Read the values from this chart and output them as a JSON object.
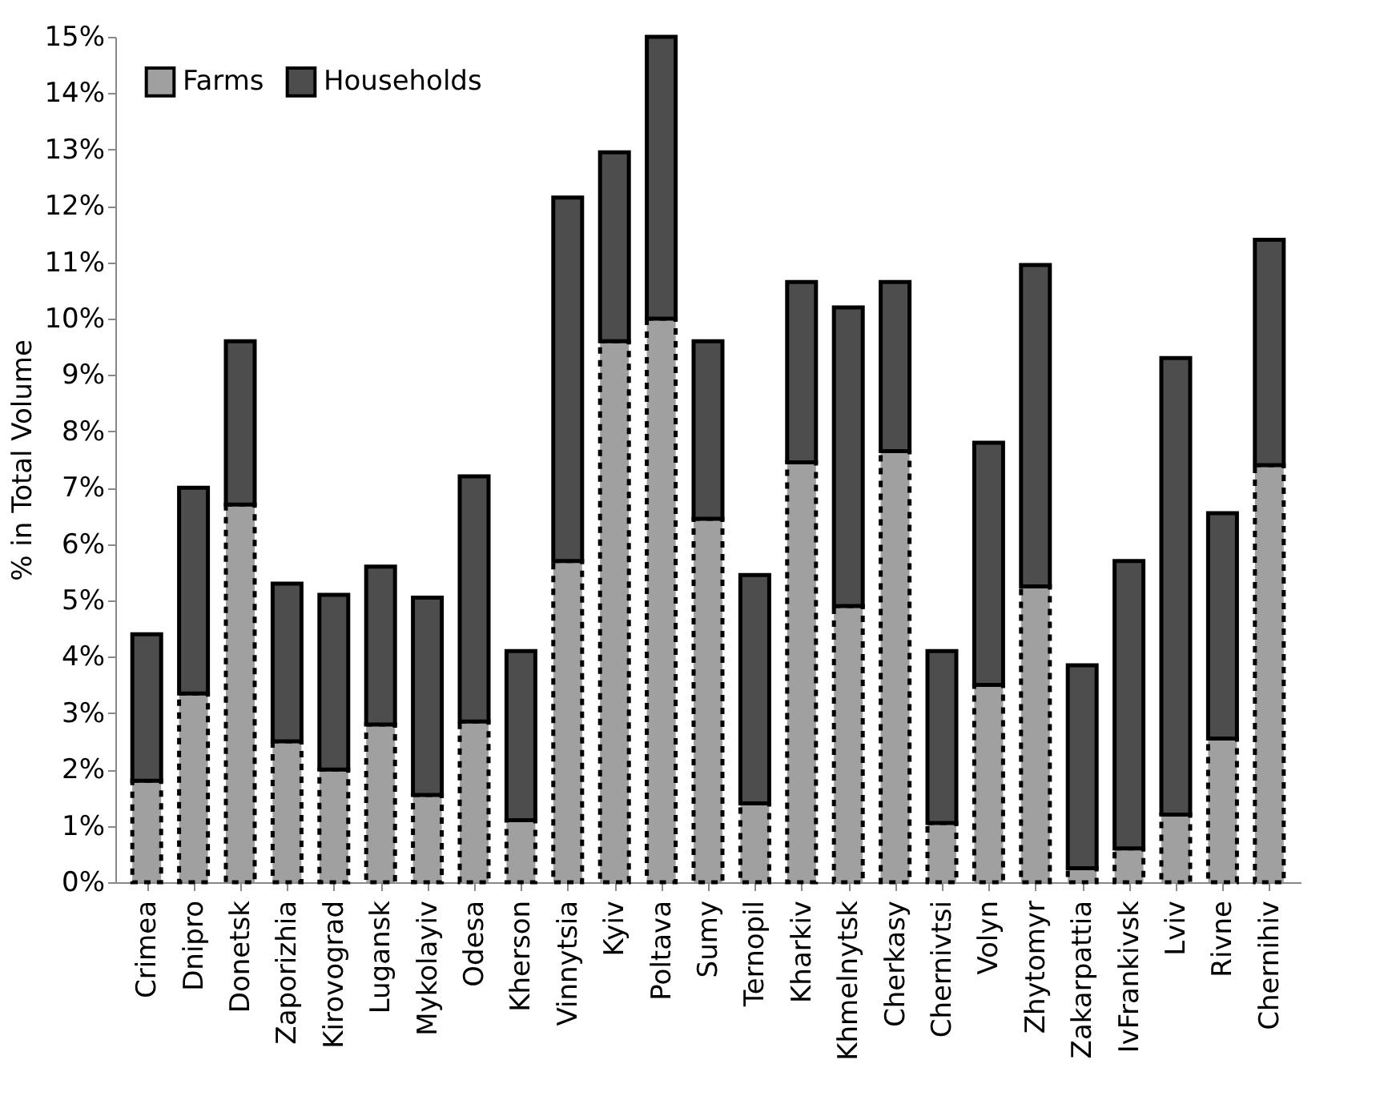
{
  "chart_data": {
    "type": "bar",
    "stacked": true,
    "ylabel": "% in Total Volume",
    "categories": [
      "Crimea",
      "Dnipro",
      "Donetsk",
      "Zaporizhia",
      "Kirovograd",
      "Lugansk",
      "Mykolayiv",
      "Odesa",
      "Kherson",
      "Vinnytsia",
      "Kyiv",
      "Poltava",
      "Sumy",
      "Ternopil",
      "Kharkiv",
      "Khmelnytsk",
      "Cherkasy",
      "Chernivtsi",
      "Volyn",
      "Zhytomyr",
      "Zakarpattia",
      "IvFrankivsk",
      "Lviv",
      "Rivne",
      "Chernihiv"
    ],
    "series": [
      {
        "name": "Farms",
        "color": "#a0a0a0",
        "line_style": "dotted",
        "values": [
          1.8,
          3.35,
          6.7,
          2.5,
          2.0,
          2.8,
          1.55,
          2.85,
          1.1,
          5.7,
          9.6,
          10.0,
          6.45,
          1.4,
          7.45,
          4.9,
          7.65,
          1.05,
          3.5,
          5.25,
          0.25,
          0.6,
          1.2,
          2.55,
          7.4
        ]
      },
      {
        "name": "Households",
        "color": "#4d4d4d",
        "line_style": "solid",
        "values": [
          2.6,
          3.65,
          2.9,
          2.8,
          3.1,
          2.8,
          3.5,
          4.35,
          3.0,
          6.45,
          3.35,
          5.0,
          3.15,
          4.05,
          3.2,
          5.3,
          3.0,
          3.05,
          4.3,
          5.7,
          3.6,
          5.1,
          8.1,
          4.0,
          4.0
        ]
      }
    ],
    "ylim": [
      0,
      15
    ],
    "yticks": [
      {
        "value": 0,
        "label": "0%"
      },
      {
        "value": 1,
        "label": "1%"
      },
      {
        "value": 2,
        "label": "2%"
      },
      {
        "value": 3,
        "label": "3%"
      },
      {
        "value": 4,
        "label": "4%"
      },
      {
        "value": 5,
        "label": "5%"
      },
      {
        "value": 6,
        "label": "6%"
      },
      {
        "value": 7,
        "label": "7%"
      },
      {
        "value": 8,
        "label": "8%"
      },
      {
        "value": 9,
        "label": "9%"
      },
      {
        "value": 10,
        "label": "10%"
      },
      {
        "value": 11,
        "label": "11%"
      },
      {
        "value": 12,
        "label": "12%"
      },
      {
        "value": 13,
        "label": "13%"
      },
      {
        "value": 14,
        "label": "14%"
      },
      {
        "value": 15,
        "label": "15%"
      }
    ],
    "legend": "top left"
  }
}
